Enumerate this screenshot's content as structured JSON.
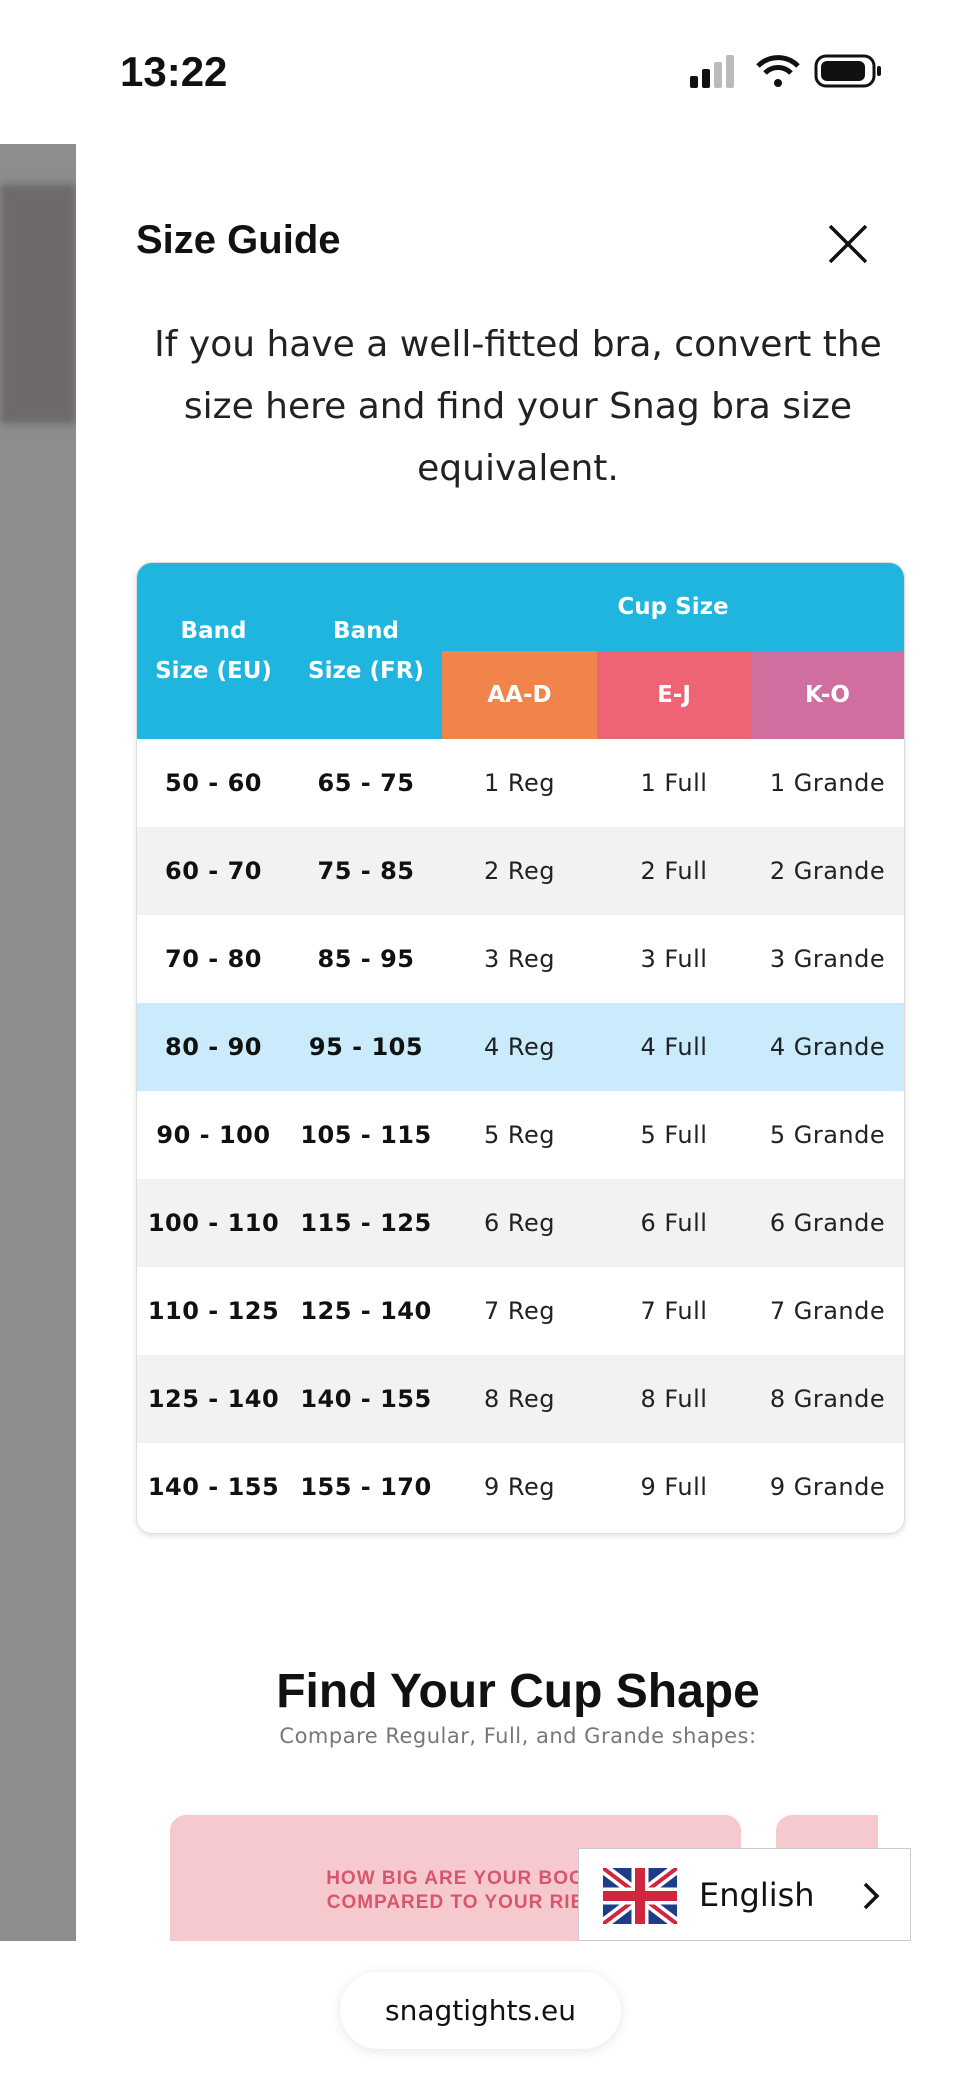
{
  "status_bar": {
    "time": "13:22"
  },
  "modal": {
    "title": "Size Guide",
    "intro": [
      "If you have a well-fitted bra, convert the",
      "size here and find your Snag bra size",
      "equivalent."
    ],
    "table": {
      "band_headers": [
        "Band Size (EU)",
        "Band Size (FR)"
      ],
      "cup_header": "Cup Size",
      "cup_columns": [
        "AA-D",
        "E-J",
        "K-O"
      ],
      "highlighted_row": 3,
      "rows": [
        [
          "50 - 60",
          "65 - 75",
          "1 Reg",
          "1 Full",
          "1 Grande"
        ],
        [
          "60 - 70",
          "75 - 85",
          "2 Reg",
          "2 Full",
          "2 Grande"
        ],
        [
          "70 - 80",
          "85 - 95",
          "3 Reg",
          "3 Full",
          "3 Grande"
        ],
        [
          "80 - 90",
          "95 - 105",
          "4 Reg",
          "4 Full",
          "4 Grande"
        ],
        [
          "90 - 100",
          "105 - 115",
          "5 Reg",
          "5 Full",
          "5 Grande"
        ],
        [
          "100 - 110",
          "115 - 125",
          "6 Reg",
          "6 Full",
          "6 Grande"
        ],
        [
          "110 - 125",
          "125 - 140",
          "7 Reg",
          "7 Full",
          "7 Grande"
        ],
        [
          "125 - 140",
          "140 - 155",
          "8 Reg",
          "8 Full",
          "8 Grande"
        ],
        [
          "140 - 155",
          "155 - 170",
          "9 Reg",
          "9 Full",
          "9 Grande"
        ]
      ]
    },
    "section_title": "Find Your Cup Shape",
    "section_subtitle": "Compare Regular, Full, and Grande shapes:",
    "banner_text": [
      "HOW BIG ARE YOUR BOO",
      "COMPARED TO YOUR RIE"
    ]
  },
  "language_selector": {
    "label": "English"
  },
  "browser": {
    "url": "snagtights.eu"
  }
}
